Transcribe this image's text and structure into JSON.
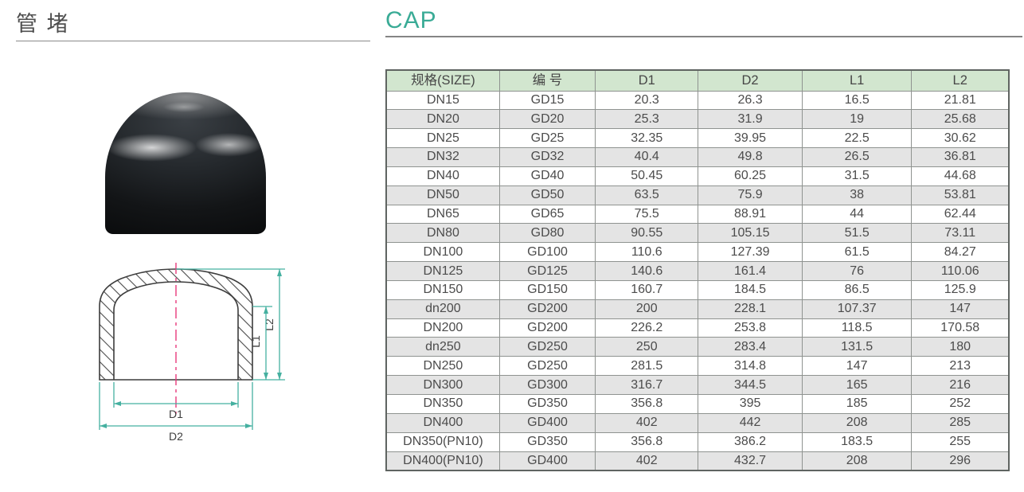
{
  "page": {
    "title_cn": "管 堵",
    "title_en": "CAP"
  },
  "colors": {
    "accent": "#3aab96",
    "dim": "#45b0a0",
    "centerline": "#e83a7c",
    "outline": "#3c3c3c",
    "table-header-bg": "#d2e6cf",
    "row-alt": "#e4e4e4",
    "border": "#8f9390",
    "border-dark": "#5f6461",
    "text": "#4c4c4c"
  },
  "diagram": {
    "labels": {
      "d1": "D1",
      "d2": "D2",
      "l1": "L1",
      "l2": "L2"
    }
  },
  "table": {
    "headers": [
      "规格(SIZE)",
      "编  号",
      "D1",
      "D2",
      "L1",
      "L2"
    ],
    "rows": [
      [
        "DN15",
        "GD15",
        "20.3",
        "26.3",
        "16.5",
        "21.81"
      ],
      [
        "DN20",
        "GD20",
        "25.3",
        "31.9",
        "19",
        "25.68"
      ],
      [
        "DN25",
        "GD25",
        "32.35",
        "39.95",
        "22.5",
        "30.62"
      ],
      [
        "DN32",
        "GD32",
        "40.4",
        "49.8",
        "26.5",
        "36.81"
      ],
      [
        "DN40",
        "GD40",
        "50.45",
        "60.25",
        "31.5",
        "44.68"
      ],
      [
        "DN50",
        "GD50",
        "63.5",
        "75.9",
        "38",
        "53.81"
      ],
      [
        "DN65",
        "GD65",
        "75.5",
        "88.91",
        "44",
        "62.44"
      ],
      [
        "DN80",
        "GD80",
        "90.55",
        "105.15",
        "51.5",
        "73.11"
      ],
      [
        "DN100",
        "GD100",
        "110.6",
        "127.39",
        "61.5",
        "84.27"
      ],
      [
        "DN125",
        "GD125",
        "140.6",
        "161.4",
        "76",
        "110.06"
      ],
      [
        "DN150",
        "GD150",
        "160.7",
        "184.5",
        "86.5",
        "125.9"
      ],
      [
        "dn200",
        "GD200",
        "200",
        "228.1",
        "107.37",
        "147"
      ],
      [
        "DN200",
        "GD200",
        "226.2",
        "253.8",
        "118.5",
        "170.58"
      ],
      [
        "dn250",
        "GD250",
        "250",
        "283.4",
        "131.5",
        "180"
      ],
      [
        "DN250",
        "GD250",
        "281.5",
        "314.8",
        "147",
        "213"
      ],
      [
        "DN300",
        "GD300",
        "316.7",
        "344.5",
        "165",
        "216"
      ],
      [
        "DN350",
        "GD350",
        "356.8",
        "395",
        "185",
        "252"
      ],
      [
        "DN400",
        "GD400",
        "402",
        "442",
        "208",
        "285"
      ],
      [
        "DN350(PN10)",
        "GD350",
        "356.8",
        "386.2",
        "183.5",
        "255"
      ],
      [
        "DN400(PN10)",
        "GD400",
        "402",
        "432.7",
        "208",
        "296"
      ]
    ]
  }
}
